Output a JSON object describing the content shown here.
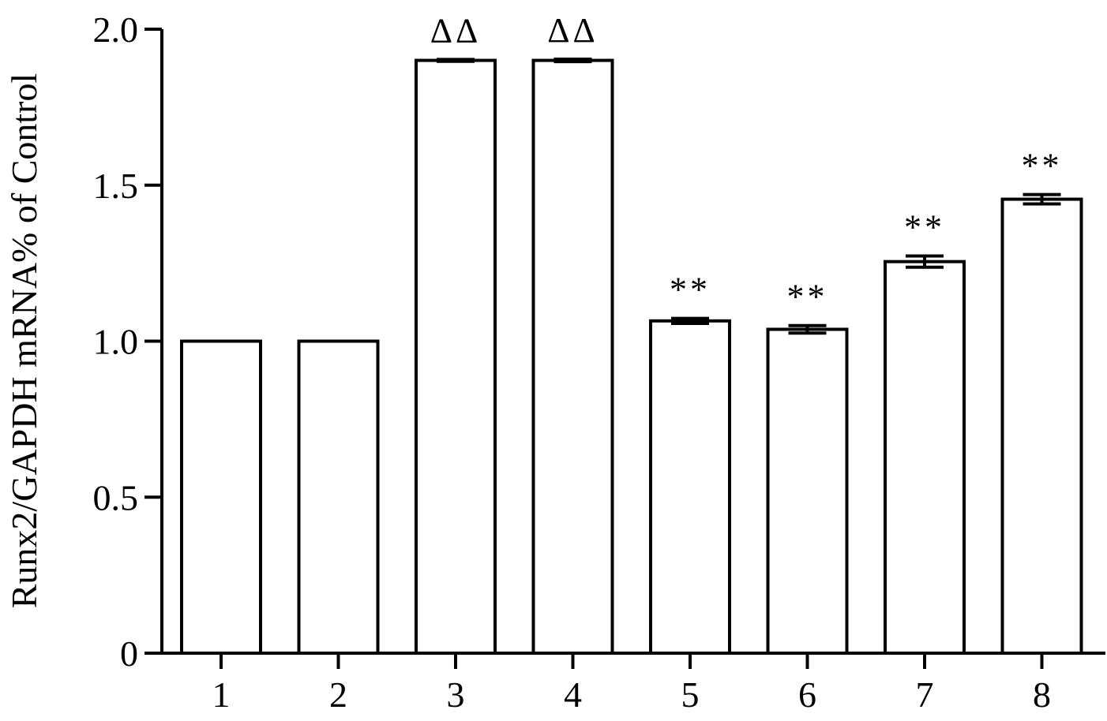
{
  "chart_data": {
    "type": "bar",
    "title": "",
    "xlabel": "",
    "ylabel": "Runx2/GAPDH mRNA% of Control",
    "ylim": [
      0,
      2.0
    ],
    "yticks": [
      "0",
      "0.5",
      "1.0",
      "1.5",
      "2.0"
    ],
    "ytick_values": [
      0,
      0.5,
      1.0,
      1.5,
      2.0
    ],
    "categories": [
      "1",
      "2",
      "3",
      "4",
      "5",
      "6",
      "7",
      "8"
    ],
    "values": [
      1.0,
      1.0,
      1.9,
      1.9,
      1.065,
      1.038,
      1.255,
      1.455
    ],
    "errors": [
      0,
      0,
      0.003,
      0.004,
      0.008,
      0.012,
      0.018,
      0.015
    ],
    "annotations": [
      "",
      "",
      "ΔΔ",
      "ΔΔ",
      "**",
      "**",
      "**",
      "**"
    ],
    "grid": false,
    "bar_fill": "#ffffff",
    "bar_stroke": "#000000"
  }
}
